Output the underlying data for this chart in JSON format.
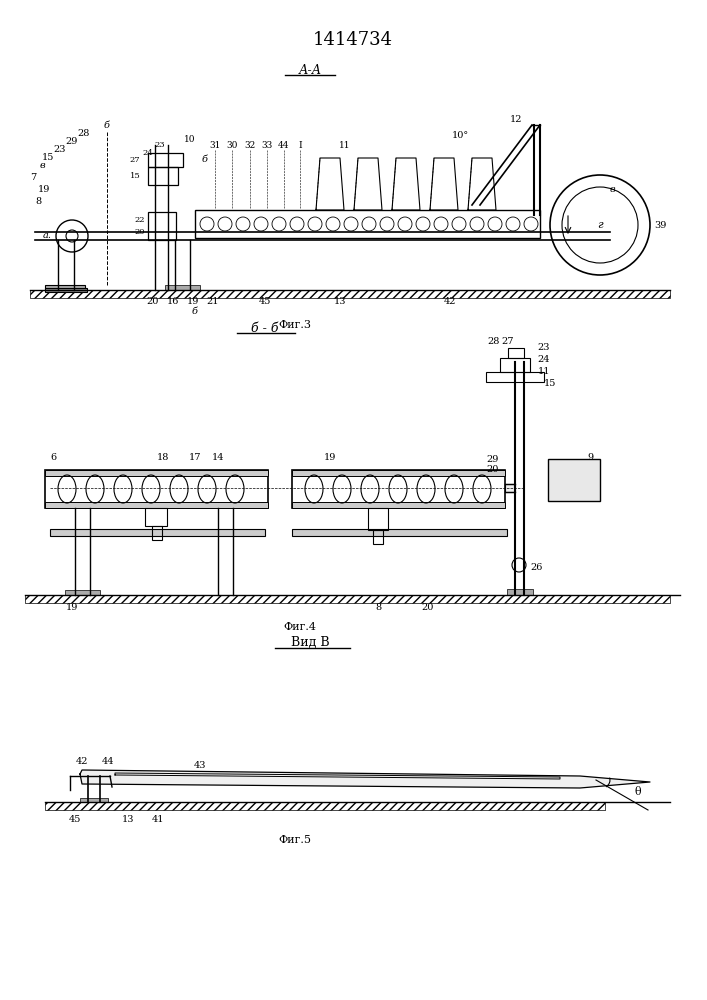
{
  "title": "1414734",
  "title_fontsize": 13,
  "fig_width": 7.07,
  "fig_height": 10.0,
  "bg_color": "#ffffff",
  "line_color": "#000000",
  "fig3_caption": "Фиг.3",
  "fig4_caption": "Фиг.4",
  "fig5_caption": "Фиг.5",
  "fig3_label": "А-А",
  "fig4_label": "б - б",
  "fig5_label": "Вид В"
}
